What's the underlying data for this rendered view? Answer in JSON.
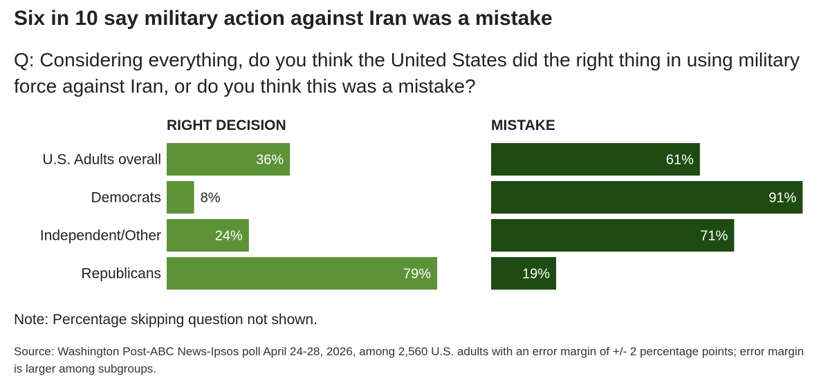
{
  "title": "Six in 10 say military action against Iran was a mistake",
  "question": "Q: Considering everything, do you think the United States did the right thing in using military force against Iran, or do you think this was a mistake?",
  "note": "Note: Percentage skipping question not shown.",
  "source": "Source: Washington Post-ABC News-Ipsos poll April 24-28, 2026, among 2,560 U.S. adults with an error margin of +/- 2 percentage points; error margin is larger among subgroups.",
  "chart_data": {
    "type": "bar",
    "orientation": "horizontal",
    "title": "Six in 10 say military action against Iran was a mistake",
    "categories": [
      "U.S. Adults overall",
      "Democrats",
      "Independent/Other",
      "Republicans"
    ],
    "value_suffix": "%",
    "series": [
      {
        "name": "RIGHT DECISION",
        "values": [
          36,
          8,
          24,
          79
        ],
        "color": "#5c9338"
      },
      {
        "name": "MISTAKE",
        "values": [
          61,
          91,
          71,
          19
        ],
        "color": "#1e4b12"
      }
    ],
    "xlim": [
      0,
      100
    ],
    "grid": false,
    "legend": "panel headers above bars"
  }
}
